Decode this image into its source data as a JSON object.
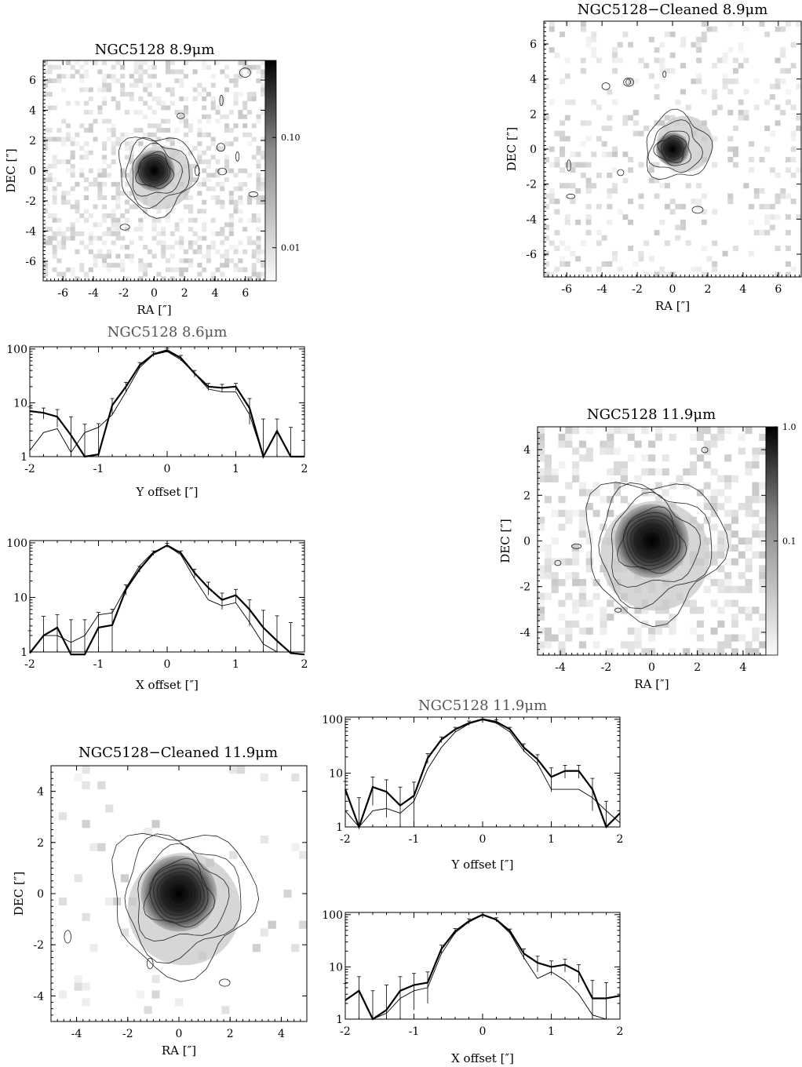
{
  "figure": {
    "images": [
      {
        "id": "img89",
        "title": "NGC5128 8.9μm",
        "xlabel": "RA [″]",
        "ylabel": "DEC [″]",
        "extent": 7.3,
        "ticks": [
          -6,
          -4,
          -2,
          0,
          2,
          4,
          6
        ],
        "colorbar": true,
        "colorbar_ticks": [
          "0.10",
          "0.01"
        ],
        "cb_min": 0.005,
        "cb_max": 0.5,
        "core_radius": 1.0,
        "halo_radius": 2.1,
        "halo_dx": 0.9,
        "halo_dy": -0.9,
        "noise_density": 0.35,
        "n_contours": 10,
        "seed": 11
      },
      {
        "id": "clean89",
        "title": "NGC5128−Cleaned 8.9μm",
        "xlabel": "RA [″]",
        "ylabel": "DEC [″]",
        "extent": 7.3,
        "ticks": [
          -6,
          -4,
          -2,
          0,
          2,
          4,
          6
        ],
        "colorbar": false,
        "core_radius": 0.7,
        "halo_radius": 1.6,
        "halo_dx": 1.4,
        "halo_dy": 0.6,
        "noise_density": 0.15,
        "n_contours": 8,
        "seed": 23
      },
      {
        "id": "img119",
        "title": "NGC5128 11.9μm",
        "xlabel": "RA [″]",
        "ylabel": "DEC [″]",
        "extent": 5.0,
        "ticks": [
          -4,
          -2,
          0,
          2,
          4
        ],
        "colorbar": true,
        "colorbar_ticks": [
          "1.0",
          "0.1"
        ],
        "cb_min": 0.01,
        "cb_max": 1.0,
        "core_radius": 1.2,
        "halo_radius": 2.4,
        "halo_dx": 0.3,
        "halo_dy": -1.3,
        "noise_density": 0.35,
        "n_contours": 10,
        "seed": 37
      },
      {
        "id": "clean119",
        "title": "NGC5128−Cleaned 11.9μm",
        "xlabel": "RA [″]",
        "ylabel": "DEC [″]",
        "extent": 5.0,
        "ticks": [
          -4,
          -2,
          0,
          2,
          4
        ],
        "colorbar": false,
        "core_radius": 1.1,
        "halo_radius": 2.2,
        "halo_dx": 0.4,
        "halo_dy": -1.2,
        "noise_density": 0.04,
        "n_contours": 10,
        "seed": 51
      }
    ]
  },
  "chart_data": [
    {
      "type": "line",
      "title": "NGC5128 8.6μm",
      "xlabel": "Y offset [″]",
      "ylabel": "",
      "xlim": [
        -2,
        2
      ],
      "ylim": [
        1,
        110
      ],
      "yscale": "log",
      "xticks": [
        -2,
        -1,
        0,
        1,
        2
      ],
      "yticks": [
        1,
        10,
        100
      ],
      "x": [
        -2.0,
        -1.8,
        -1.6,
        -1.4,
        -1.2,
        -1.0,
        -0.8,
        -0.6,
        -0.4,
        -0.2,
        0.0,
        0.2,
        0.4,
        0.6,
        0.8,
        1.0,
        1.2,
        1.4,
        1.6,
        1.8,
        2.0
      ],
      "series": [
        {
          "values": [
            7,
            6.5,
            5.5,
            2.5,
            1.0,
            1.1,
            9,
            20,
            50,
            80,
            95,
            68,
            35,
            20,
            19,
            20,
            8,
            1.0,
            3.0,
            1.0,
            1.0
          ],
          "errors": [
            1.5,
            1.5,
            2,
            3,
            3,
            3,
            3,
            4,
            6,
            8,
            8,
            8,
            5,
            3,
            3,
            3,
            4,
            4,
            2,
            2.5,
            0
          ]
        },
        {
          "values": [
            1.3,
            2.8,
            3.3,
            1.2,
            2.8,
            3.5,
            6,
            16,
            45,
            78,
            90,
            63,
            35,
            18,
            16,
            16,
            6,
            1.0,
            1.0,
            1.0,
            1.0
          ]
        }
      ]
    },
    {
      "type": "line",
      "title": "",
      "xlabel": "X offset [″]",
      "ylabel": "",
      "xlim": [
        -2,
        2
      ],
      "ylim": [
        1,
        110
      ],
      "yscale": "log",
      "xticks": [
        -2,
        -1,
        0,
        1,
        2
      ],
      "yticks": [
        1,
        10,
        100
      ],
      "x": [
        -2.0,
        -1.8,
        -1.6,
        -1.4,
        -1.2,
        -1.0,
        -0.8,
        -0.6,
        -0.4,
        -0.2,
        0.0,
        0.2,
        0.4,
        0.6,
        0.8,
        1.0,
        1.2,
        1.4,
        1.6,
        1.8,
        2.0
      ],
      "series": [
        {
          "values": [
            0.95,
            2.0,
            2.8,
            0.9,
            0.9,
            2.8,
            3.1,
            14,
            33,
            65,
            90,
            65,
            28,
            15,
            9,
            11,
            6,
            2.8,
            1.6,
            0.95,
            0.9
          ],
          "errors": [
            1.5,
            2.5,
            2,
            3,
            3,
            2.5,
            3,
            3,
            4,
            6,
            8,
            6,
            5,
            4,
            3,
            3,
            3,
            3,
            3,
            2.5,
            0
          ]
        },
        {
          "values": [
            1.0,
            2.0,
            2.0,
            1.5,
            2.0,
            4.8,
            5.2,
            15,
            38,
            68,
            88,
            60,
            22,
            9,
            7,
            8,
            3.5,
            1.4,
            1.0,
            1.0,
            1.0
          ]
        }
      ]
    },
    {
      "type": "line",
      "title": "NGC5128 11.9μm",
      "xlabel": "Y offset [″]",
      "ylabel": "",
      "xlim": [
        -2,
        2
      ],
      "ylim": [
        1,
        110
      ],
      "yscale": "log",
      "xticks": [
        -2,
        -1,
        0,
        1,
        2
      ],
      "yticks": [
        1,
        10,
        100
      ],
      "x": [
        -2.0,
        -1.8,
        -1.6,
        -1.4,
        -1.2,
        -1.0,
        -0.8,
        -0.6,
        -0.4,
        -0.2,
        0.0,
        0.2,
        0.4,
        0.6,
        0.8,
        1.0,
        1.2,
        1.4,
        1.6,
        1.8,
        2.0
      ],
      "series": [
        {
          "values": [
            5,
            1.0,
            5.5,
            4.5,
            2.5,
            3.8,
            19,
            42,
            65,
            85,
            100,
            90,
            65,
            30,
            18,
            8.5,
            11,
            11,
            5,
            1.0,
            1.8
          ],
          "errors": [
            2,
            2.5,
            3,
            3,
            3,
            3,
            4,
            5,
            6,
            8,
            9,
            8,
            6,
            5,
            4,
            4,
            3,
            3,
            3,
            2,
            0
          ]
        },
        {
          "values": [
            2.0,
            1.0,
            2.0,
            2.2,
            1.8,
            3.0,
            12,
            30,
            58,
            82,
            98,
            85,
            58,
            26,
            15,
            5,
            5,
            5,
            3.5,
            2.0,
            1.2
          ]
        }
      ]
    },
    {
      "type": "line",
      "title": "",
      "xlabel": "X offset [″]",
      "ylabel": "",
      "xlim": [
        -2,
        2
      ],
      "ylim": [
        1,
        110
      ],
      "yscale": "log",
      "xticks": [
        -2,
        -1,
        0,
        1,
        2
      ],
      "yticks": [
        1,
        10,
        100
      ],
      "x": [
        -2.0,
        -1.8,
        -1.6,
        -1.4,
        -1.2,
        -1.0,
        -0.8,
        -0.6,
        -0.4,
        -0.2,
        0.0,
        0.2,
        0.4,
        0.6,
        0.8,
        1.0,
        1.2,
        1.4,
        1.6,
        1.8,
        2.0
      ],
      "series": [
        {
          "values": [
            2.3,
            3.5,
            1.0,
            1.5,
            3.5,
            4.5,
            5.0,
            22,
            48,
            75,
            100,
            80,
            48,
            18,
            12,
            10,
            11,
            8,
            2.5,
            2.5,
            2.8
          ],
          "errors": [
            2.5,
            3,
            2.5,
            3,
            3,
            3,
            3,
            4,
            6,
            8,
            9,
            7,
            5,
            4,
            4,
            3,
            3,
            3,
            3,
            2.5,
            0
          ]
        },
        {
          "values": [
            1.0,
            1.0,
            1.0,
            1.3,
            2.5,
            3.5,
            4.0,
            18,
            45,
            72,
            98,
            78,
            44,
            15,
            6,
            8,
            5.5,
            3,
            1.2,
            1.0,
            1.0
          ]
        }
      ]
    }
  ]
}
